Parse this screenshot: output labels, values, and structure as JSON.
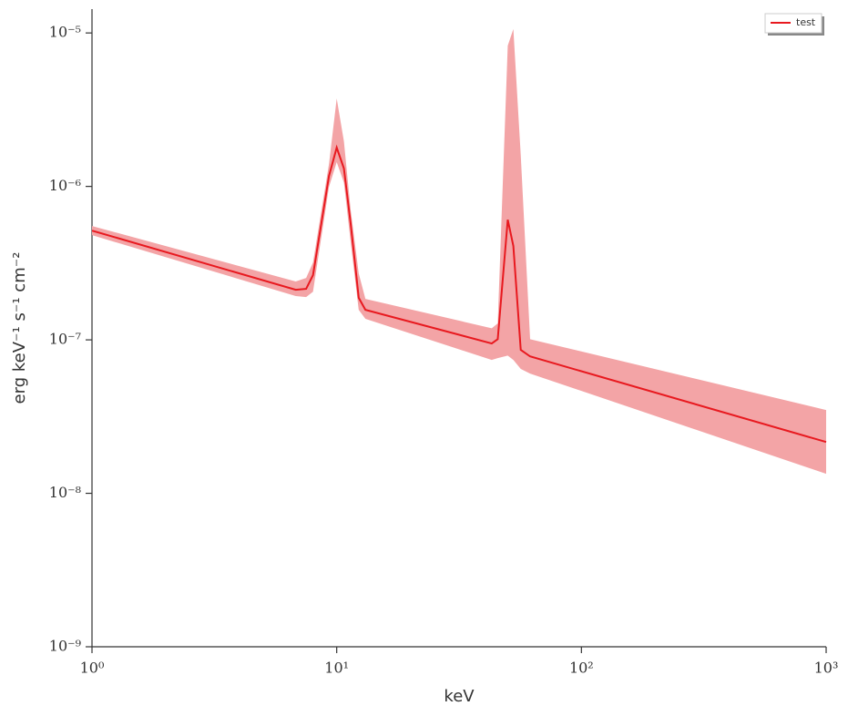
{
  "chart_data": {
    "type": "line",
    "xlabel": "keV",
    "ylabel": "erg keV⁻¹ s⁻¹ cm⁻²",
    "xscale": "log",
    "yscale": "log",
    "xlim": [
      1,
      1000
    ],
    "ylim": [
      1e-09,
      1.43e-05
    ],
    "xticks": [
      {
        "value": 1,
        "label": "10⁰"
      },
      {
        "value": 10,
        "label": "10¹"
      },
      {
        "value": 100,
        "label": "10²"
      },
      {
        "value": 1000,
        "label": "10³"
      }
    ],
    "yticks": [
      {
        "value": 1e-09,
        "label": "10⁻⁹"
      },
      {
        "value": 1e-08,
        "label": "10⁻⁸"
      },
      {
        "value": 1e-07,
        "label": "10⁻⁷"
      },
      {
        "value": 1e-06,
        "label": "10⁻⁶"
      },
      {
        "value": 1e-05,
        "label": "10⁻⁵"
      }
    ],
    "legend": "upper right",
    "x": [
      1,
      6.8,
      7.5,
      8,
      9.3,
      10,
      10.7,
      11.4,
      12.3,
      13.1,
      43,
      45.5,
      50,
      52.7,
      56.5,
      61.7,
      1000
    ],
    "series": [
      {
        "name": "test",
        "color": "#e8191f",
        "values": [
          5.15e-07,
          2.12e-07,
          2.15e-07,
          2.64e-07,
          1.17e-06,
          1.79e-06,
          1.31e-06,
          5.75e-07,
          1.88e-07,
          1.57e-07,
          9.47e-08,
          1.01e-07,
          6.07e-07,
          4.09e-07,
          8.6e-08,
          7.8e-08,
          2.16e-08
        ]
      }
    ],
    "band": {
      "color": "#f3a4a6",
      "upper": [
        5.52e-07,
        2.4e-07,
        2.53e-07,
        3.19e-07,
        1.4e-06,
        3.74e-06,
        1.97e-06,
        7.06e-07,
        2.71e-07,
        1.85e-07,
        1.19e-07,
        1.28e-07,
        8.26e-06,
        1.06e-05,
        1.6e-06,
        1.01e-07,
        3.49e-08
      ],
      "lower": [
        4.81e-07,
        1.93e-07,
        1.9e-07,
        2.06e-07,
        9.93e-07,
        1.44e-06,
        1.06e-06,
        4.37e-07,
        1.57e-07,
        1.37e-07,
        7.4e-08,
        7.6e-08,
        7.9e-08,
        7.4e-08,
        6.46e-08,
        6.03e-08,
        1.34e-08
      ]
    }
  }
}
